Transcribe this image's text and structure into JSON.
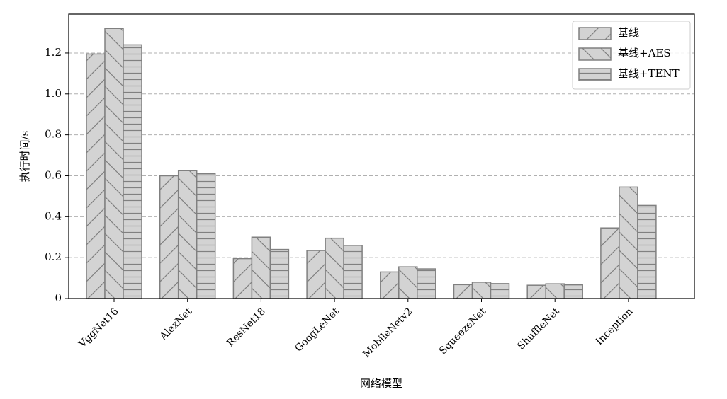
{
  "chart_data": {
    "type": "bar",
    "xlabel": "网络模型",
    "ylabel": "执行时间/s",
    "categories": [
      "VggNet16",
      "AlexNet",
      "ResNet18",
      "GoogLeNet",
      "MobileNetv2",
      "SqueezeNet",
      "ShuffleNet",
      "Inception"
    ],
    "series": [
      {
        "name": "基线",
        "color": "#d3d3d3",
        "hatch": "/",
        "values": [
          1.195,
          0.6,
          0.195,
          0.235,
          0.13,
          0.068,
          0.065,
          0.345
        ]
      },
      {
        "name": "基线+AES",
        "color": "#d3d3d3",
        "hatch": "\\",
        "values": [
          1.32,
          0.625,
          0.3,
          0.295,
          0.155,
          0.08,
          0.072,
          0.545
        ]
      },
      {
        "name": "基线+TENT",
        "color": "#d3d3d3",
        "hatch": "-",
        "values": [
          1.24,
          0.61,
          0.24,
          0.26,
          0.145,
          0.073,
          0.067,
          0.455
        ]
      }
    ],
    "ylim": [
      0,
      1.39
    ],
    "yticks": [
      0,
      0.2,
      0.4,
      0.6,
      0.8,
      {
        "value": 1,
        "label": "1.0"
      },
      1.2
    ],
    "grid": true,
    "legend": "upper right"
  }
}
